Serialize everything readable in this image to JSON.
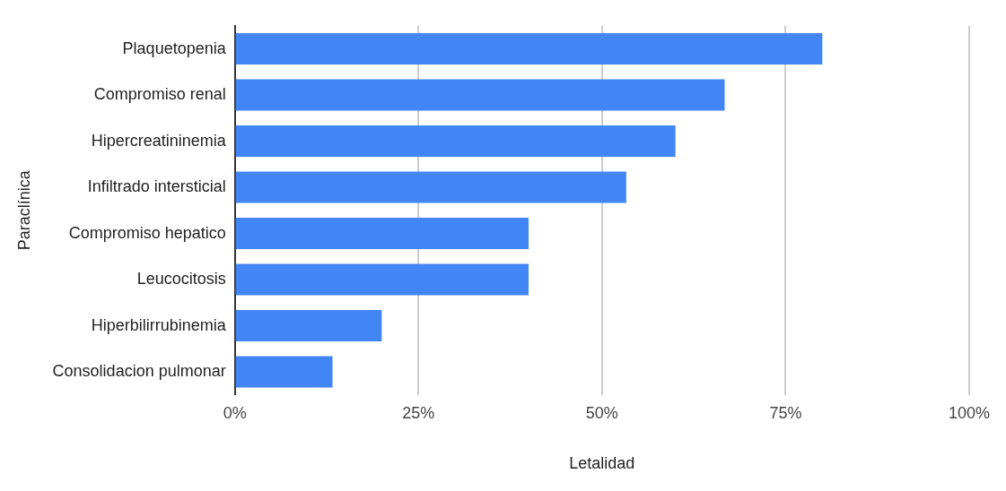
{
  "chart_data": {
    "type": "bar",
    "orientation": "horizontal",
    "xlabel": "Letalidad",
    "ylabel": "Paraclínica",
    "categories": [
      "Plaquetopenia",
      "Compromiso renal",
      "Hipercreatininemia",
      "Infiltrado intersticial",
      "Compromiso hepatico",
      "Leucocitosis",
      "Hiperbilirrubinemia",
      "Consolidacion pulmonar"
    ],
    "values": [
      80,
      66.7,
      60,
      53.3,
      40,
      40,
      20,
      13.3
    ],
    "color": "#4285f4",
    "xlim": [
      0,
      100
    ],
    "xticks": [
      {
        "value": 0,
        "label": "0%"
      },
      {
        "value": 25,
        "label": "25%"
      },
      {
        "value": 50,
        "label": "50%"
      },
      {
        "value": 75,
        "label": "75%"
      },
      {
        "value": 100,
        "label": "100%"
      }
    ],
    "grid": "x",
    "legend": false
  }
}
